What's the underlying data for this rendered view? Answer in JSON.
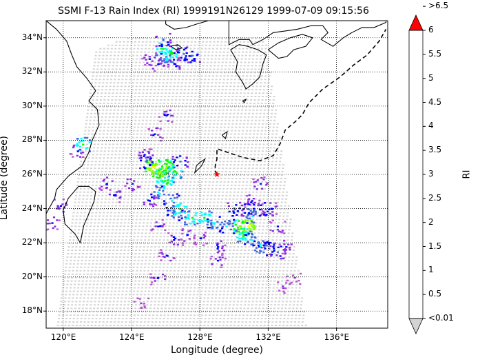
{
  "title": "SSMI F-13 Rain Index (RI) 1999191N26129 1999-07-09 09:15:56",
  "xlabel": "Longitude (degree)",
  "ylabel": "Latitude (degree)",
  "map": {
    "lon_range": [
      119,
      139
    ],
    "lat_range": [
      17,
      35
    ],
    "x_ticks": [
      {
        "value": 120,
        "label": "120°E"
      },
      {
        "value": 124,
        "label": "124°E"
      },
      {
        "value": 128,
        "label": "128°E"
      },
      {
        "value": 132,
        "label": "132°E"
      },
      {
        "value": 136,
        "label": "136°E"
      }
    ],
    "y_ticks": [
      {
        "value": 18,
        "label": "18°N"
      },
      {
        "value": 20,
        "label": "20°N"
      },
      {
        "value": 22,
        "label": "22°N"
      },
      {
        "value": 24,
        "label": "24°N"
      },
      {
        "value": 26,
        "label": "26°N"
      },
      {
        "value": 28,
        "label": "28°N"
      },
      {
        "value": 30,
        "label": "30°N"
      },
      {
        "value": 32,
        "label": "32°N"
      },
      {
        "value": 34,
        "label": "34°N"
      }
    ],
    "storm_center": {
      "lon": 129.0,
      "lat": 26.0,
      "color": "#ff0000"
    },
    "track": [
      [
        129,
        26
      ],
      [
        128.9,
        26.2
      ],
      [
        128.9,
        26.5
      ],
      [
        129,
        26.9
      ],
      [
        129,
        27.5
      ],
      [
        130.5,
        27
      ],
      [
        131.5,
        26.8
      ],
      [
        132.3,
        27.1
      ],
      [
        132.7,
        27.8
      ],
      [
        133,
        28.6
      ],
      [
        133.6,
        29.1
      ],
      [
        134,
        29.5
      ],
      [
        134.4,
        30.2
      ],
      [
        135.2,
        31
      ],
      [
        136.2,
        31.7
      ],
      [
        137,
        32.4
      ],
      [
        137.8,
        33
      ],
      [
        138.5,
        33.8
      ],
      [
        138.9,
        34.5
      ]
    ],
    "swath_color": "#d3d3d3",
    "rain_cells": [
      [
        125.5,
        26.3,
        7
      ],
      [
        125.2,
        26.5,
        7
      ],
      [
        125.8,
        26.0,
        6
      ],
      [
        126.0,
        26.5,
        6
      ],
      [
        126.5,
        26.2,
        5
      ],
      [
        126.0,
        25.5,
        5
      ],
      [
        125.5,
        25.0,
        4
      ],
      [
        126.3,
        24.5,
        4
      ],
      [
        126.8,
        24.0,
        5
      ],
      [
        126.5,
        23.7,
        4
      ],
      [
        127.5,
        23.5,
        5
      ],
      [
        128.2,
        23.5,
        5
      ],
      [
        128.8,
        23.2,
        4
      ],
      [
        129.5,
        23.0,
        4
      ],
      [
        130.3,
        23.0,
        6
      ],
      [
        130.8,
        23.0,
        7
      ],
      [
        130.5,
        22.5,
        5
      ],
      [
        131.0,
        22.2,
        4
      ],
      [
        131.5,
        21.8,
        4
      ],
      [
        132.0,
        21.7,
        3
      ],
      [
        132.5,
        21.5,
        3
      ],
      [
        124.8,
        26.8,
        3
      ],
      [
        126.8,
        26.8,
        3
      ],
      [
        125.0,
        24.5,
        2
      ],
      [
        124.0,
        25.5,
        2
      ],
      [
        127.2,
        22.5,
        2
      ],
      [
        128.0,
        22.3,
        2
      ],
      [
        129.0,
        21.8,
        2
      ],
      [
        129.0,
        21.0,
        2
      ],
      [
        131.5,
        25.5,
        2
      ],
      [
        131.0,
        24.5,
        2
      ],
      [
        132.0,
        24.0,
        2
      ],
      [
        132.5,
        23.0,
        2
      ],
      [
        133.0,
        21.8,
        2
      ],
      [
        125.8,
        33.4,
        5
      ],
      [
        126.3,
        33.2,
        5
      ],
      [
        126.0,
        32.8,
        4
      ],
      [
        127.0,
        33.1,
        3
      ],
      [
        127.5,
        33.0,
        3
      ],
      [
        125.8,
        33.9,
        3
      ],
      [
        125.5,
        32.5,
        2
      ],
      [
        126.5,
        32.5,
        2
      ],
      [
        125.0,
        32.8,
        2
      ],
      [
        126.0,
        29.5,
        2
      ],
      [
        125.3,
        28.4,
        2
      ],
      [
        121.1,
        27.8,
        5
      ],
      [
        120.8,
        27.4,
        2
      ],
      [
        124.7,
        27.2,
        2
      ],
      [
        119.3,
        23.2,
        2
      ],
      [
        119.8,
        24.2,
        2
      ],
      [
        122.5,
        25.5,
        2
      ],
      [
        123.0,
        24.8,
        2
      ],
      [
        125.5,
        20.0,
        2
      ],
      [
        126.0,
        21.3,
        2
      ],
      [
        126.5,
        22.3,
        2
      ],
      [
        133.5,
        20.0,
        1
      ],
      [
        132.8,
        19.5,
        1
      ],
      [
        124.5,
        18.5,
        1
      ],
      [
        125.5,
        23.0,
        2
      ],
      [
        130.0,
        24.0,
        3
      ],
      [
        130.8,
        24.0,
        3
      ],
      [
        131.8,
        24.0,
        3
      ],
      [
        131.0,
        23.6,
        4
      ]
    ],
    "continents": [
      [
        [
          119,
          23.7
        ],
        [
          119.5,
          24.6
        ],
        [
          119.6,
          25.1
        ],
        [
          120.3,
          25.9
        ],
        [
          121.1,
          26.5
        ],
        [
          121.5,
          27.3
        ],
        [
          121.7,
          28.0
        ],
        [
          122.1,
          28.9
        ],
        [
          122.0,
          29.8
        ],
        [
          121.5,
          30.3
        ],
        [
          121.9,
          30.9
        ],
        [
          121.4,
          31.6
        ],
        [
          120.8,
          32.3
        ],
        [
          120.5,
          33.0
        ],
        [
          120.2,
          33.8
        ],
        [
          119.6,
          34.5
        ],
        [
          119,
          35
        ],
        [
          119,
          23.7
        ]
      ],
      [
        [
          121.0,
          22.0
        ],
        [
          120.7,
          22.5
        ],
        [
          120.1,
          23.1
        ],
        [
          120.0,
          23.9
        ],
        [
          120.3,
          24.6
        ],
        [
          120.9,
          25.3
        ],
        [
          121.5,
          25.3
        ],
        [
          121.9,
          25.0
        ],
        [
          121.8,
          24.4
        ],
        [
          121.5,
          23.7
        ],
        [
          121.2,
          23.0
        ],
        [
          121.0,
          22.0
        ]
      ],
      [
        [
          126.0,
          34.8
        ],
        [
          126.5,
          34.5
        ],
        [
          127.2,
          34.6
        ],
        [
          127.8,
          34.8
        ],
        [
          128.5,
          35.0
        ],
        [
          126.0,
          35.0
        ],
        [
          126.0,
          34.8
        ]
      ],
      [
        [
          126.3,
          33.5
        ],
        [
          126.6,
          33.3
        ],
        [
          126.95,
          33.4
        ],
        [
          126.7,
          33.6
        ],
        [
          126.3,
          33.5
        ]
      ],
      [
        [
          129.7,
          33.6
        ],
        [
          130.3,
          33.9
        ],
        [
          130.9,
          33.9
        ],
        [
          131.1,
          33.6
        ],
        [
          131.7,
          33.9
        ],
        [
          132.3,
          34.3
        ],
        [
          133.0,
          34.4
        ],
        [
          133.7,
          34.5
        ],
        [
          134.5,
          34.7
        ],
        [
          135.2,
          34.7
        ],
        [
          135.5,
          34.3
        ],
        [
          135.1,
          33.9
        ],
        [
          135.8,
          33.5
        ],
        [
          136.4,
          34.0
        ],
        [
          136.9,
          34.3
        ],
        [
          137.5,
          34.6
        ],
        [
          138.2,
          34.6
        ],
        [
          138.9,
          34.9
        ],
        [
          138.9,
          35
        ],
        [
          129.7,
          35
        ],
        [
          129.7,
          33.6
        ]
      ],
      [
        [
          129.8,
          33.3
        ],
        [
          130.2,
          32.6
        ],
        [
          130.1,
          32.0
        ],
        [
          130.5,
          31.4
        ],
        [
          130.7,
          31.0
        ],
        [
          131.1,
          31.3
        ],
        [
          131.5,
          31.7
        ],
        [
          131.7,
          32.5
        ],
        [
          131.9,
          33.0
        ],
        [
          131.4,
          33.3
        ],
        [
          130.8,
          33.5
        ],
        [
          130.3,
          33.6
        ],
        [
          129.8,
          33.3
        ]
      ],
      [
        [
          132.0,
          33.3
        ],
        [
          132.6,
          32.8
        ],
        [
          133.1,
          32.9
        ],
        [
          133.5,
          33.3
        ],
        [
          134.2,
          33.5
        ],
        [
          134.6,
          34.0
        ],
        [
          134.0,
          34.2
        ],
        [
          133.3,
          34.0
        ],
        [
          132.6,
          33.7
        ],
        [
          132.0,
          33.3
        ]
      ],
      [
        [
          128.0,
          26.7
        ],
        [
          128.3,
          26.9
        ],
        [
          128.1,
          26.5
        ],
        [
          127.7,
          26.1
        ],
        [
          127.8,
          26.5
        ],
        [
          128.0,
          26.7
        ]
      ],
      [
        [
          129.3,
          28.3
        ],
        [
          129.6,
          28.5
        ],
        [
          129.5,
          28.1
        ],
        [
          129.3,
          28.3
        ]
      ],
      [
        [
          130.5,
          30.3
        ],
        [
          130.7,
          30.4
        ],
        [
          130.6,
          30.2
        ],
        [
          130.5,
          30.3
        ]
      ]
    ]
  },
  "colorbar": {
    "label": "RI",
    "over_color": "#ff0000",
    "under_color": "#d3d3d3",
    "colors": [
      "#ba55d3",
      "#8a2be2",
      "#0000ff",
      "#4169e1",
      "#00ffff",
      "#00ff00",
      "#7fff00",
      "#ffff00",
      "#ffa500",
      "#800000",
      "#000000",
      "#000000"
    ],
    "labels": [
      "<0.01",
      "0.5",
      "1",
      "1.5",
      "2",
      "2.5",
      "3",
      "3.5",
      "4",
      "4.5",
      "5",
      "5.5",
      "6",
      ">6.5"
    ]
  }
}
